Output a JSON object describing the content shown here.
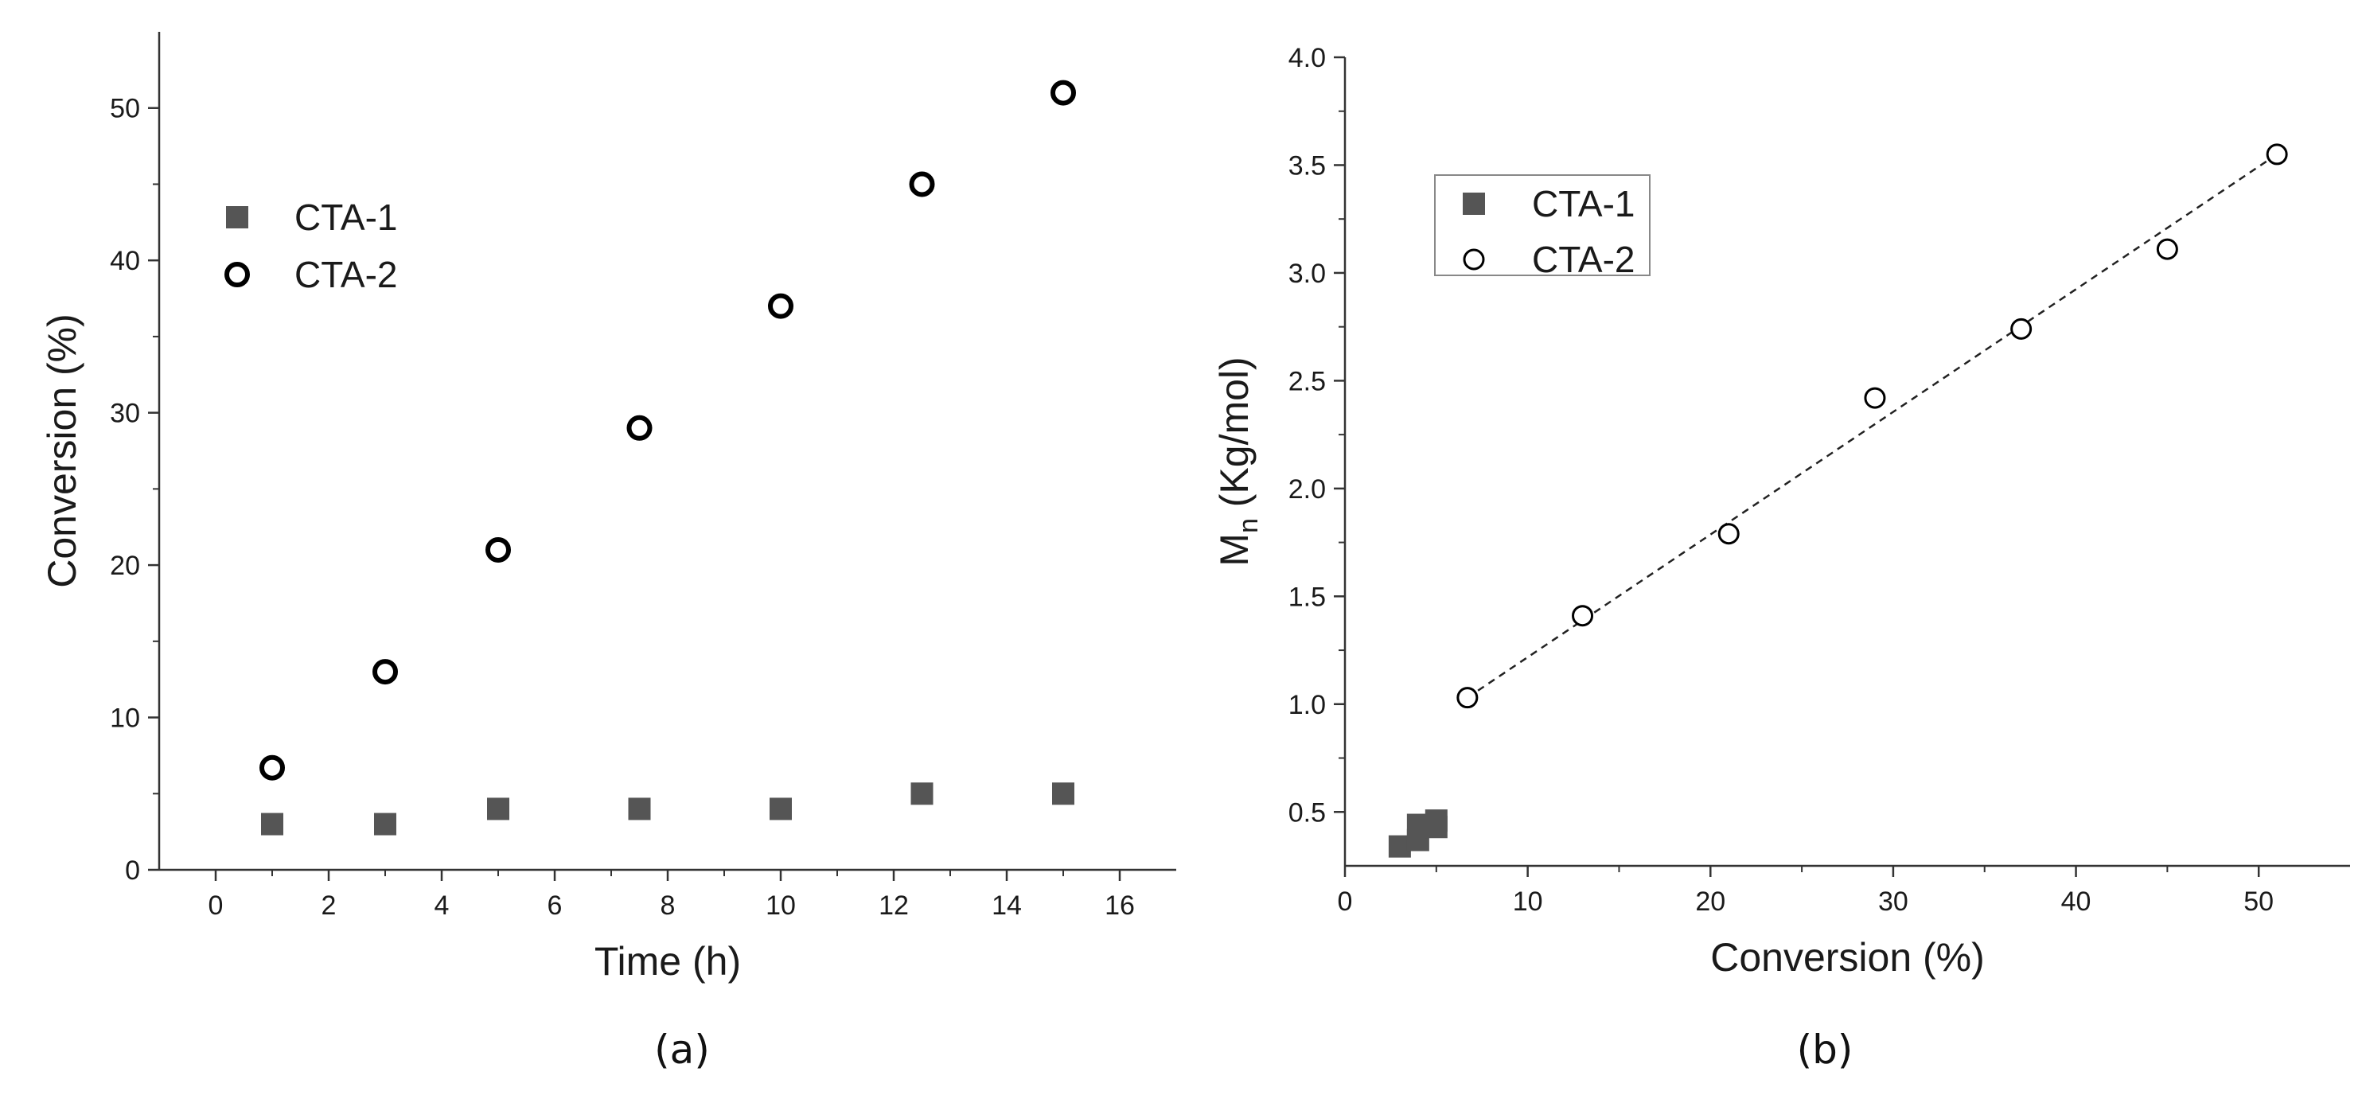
{
  "chart_data": [
    {
      "panel_label": "(a)",
      "type": "scatter",
      "xlabel": "Time (h)",
      "ylabel": "Conversion (%)",
      "xlim": [
        -1,
        17
      ],
      "ylim": [
        0,
        55
      ],
      "xticks": [
        0,
        2,
        4,
        6,
        8,
        10,
        12,
        14,
        16
      ],
      "yticks": [
        0,
        10,
        20,
        30,
        40,
        50
      ],
      "legend_position": "upper-left",
      "series": [
        {
          "name": "CTA-1",
          "marker": "filled-square",
          "color": "#555555",
          "x": [
            1,
            3,
            5,
            7.5,
            10,
            12.5,
            15
          ],
          "y": [
            3,
            3,
            4,
            4,
            4,
            5,
            5
          ]
        },
        {
          "name": "CTA-2",
          "marker": "open-circle",
          "color": "#000000",
          "x": [
            1,
            3,
            5,
            7.5,
            10,
            12.5,
            15
          ],
          "y": [
            6.7,
            13,
            21,
            29,
            37,
            45,
            51
          ]
        }
      ]
    },
    {
      "panel_label": "(b)",
      "type": "scatter",
      "xlabel": "Conversion (%)",
      "ylabel_main": "M",
      "ylabel_sub": "n",
      "ylabel_rest": " (Kg/mol)",
      "xlim": [
        0,
        55
      ],
      "ylim": [
        0.25,
        4.0
      ],
      "xticks": [
        0,
        10,
        20,
        30,
        40,
        50
      ],
      "yticks": [
        0.5,
        1.0,
        1.5,
        2.0,
        2.5,
        3.0,
        3.5,
        4.0
      ],
      "legend_position": "upper-left",
      "series": [
        {
          "name": "CTA-1",
          "marker": "filled-square",
          "color": "#555555",
          "x": [
            3,
            4,
            4,
            5,
            5
          ],
          "y": [
            0.34,
            0.37,
            0.44,
            0.43,
            0.46
          ]
        },
        {
          "name": "CTA-2",
          "marker": "open-circle",
          "color": "#000000",
          "x": [
            6.7,
            13,
            21,
            29,
            37,
            45,
            51
          ],
          "y": [
            1.03,
            1.41,
            1.79,
            2.42,
            2.74,
            3.11,
            3.55
          ]
        }
      ],
      "fit_line": {
        "style": "dashed",
        "x": [
          6.7,
          51
        ],
        "y": [
          1.03,
          3.55
        ]
      }
    }
  ]
}
